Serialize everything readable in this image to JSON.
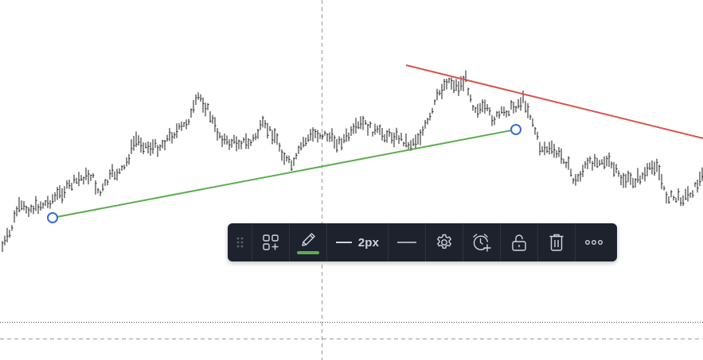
{
  "colors": {
    "price_bars": "#1a1a1a",
    "support_line": "#5cae4f",
    "resistance_line": "#d9534f",
    "anchor": "#3d6bd6",
    "toolbar_bg": "#1e222d",
    "toolbar_icon": "#d1d4dc",
    "crosshair": "#9a9a9a"
  },
  "toolbar": {
    "drag_icon": "drag-handle-icon",
    "templates_icon": "templates-icon",
    "color_icon": "pencil-icon",
    "line_color": "#5cae4f",
    "width_label": "2px",
    "style_icon": "line-style-icon",
    "settings_icon": "gear-icon",
    "alert_icon": "alarm-clock-plus-icon",
    "lock_icon": "unlock-icon",
    "delete_icon": "trash-icon",
    "more_icon": "more-icon"
  }
}
